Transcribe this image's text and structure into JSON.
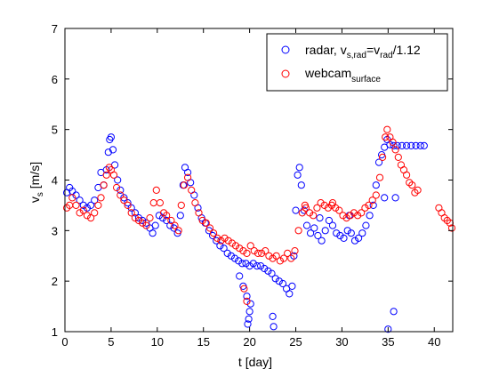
{
  "chart_data": {
    "type": "scatter",
    "xlabel": "t [day]",
    "ylabel": "v_s [m/s]",
    "xlim": [
      0,
      42
    ],
    "ylim": [
      1,
      7
    ],
    "x_ticks": [
      "0",
      "5",
      "10",
      "15",
      "20",
      "25",
      "30",
      "35",
      "40"
    ],
    "y_ticks": [
      "1",
      "2",
      "3",
      "4",
      "5",
      "6",
      "7"
    ],
    "grid": false,
    "legend_placement": "top-right",
    "series": [
      {
        "name": "radar, v_s,rad=v_rad/1.12",
        "color": "#0000ff",
        "marker": "open-circle",
        "points": [
          [
            0.2,
            3.75
          ],
          [
            0.5,
            3.85
          ],
          [
            0.8,
            3.78
          ],
          [
            1.2,
            3.7
          ],
          [
            1.6,
            3.6
          ],
          [
            2.0,
            3.5
          ],
          [
            2.4,
            3.45
          ],
          [
            2.8,
            3.5
          ],
          [
            3.2,
            3.6
          ],
          [
            3.6,
            3.85
          ],
          [
            3.9,
            4.15
          ],
          [
            4.2,
            3.9
          ],
          [
            4.5,
            4.2
          ],
          [
            4.7,
            4.55
          ],
          [
            4.85,
            4.8
          ],
          [
            5.0,
            4.85
          ],
          [
            5.2,
            4.6
          ],
          [
            5.4,
            4.3
          ],
          [
            5.7,
            4.0
          ],
          [
            6.0,
            3.8
          ],
          [
            6.4,
            3.65
          ],
          [
            6.8,
            3.55
          ],
          [
            7.2,
            3.45
          ],
          [
            7.6,
            3.35
          ],
          [
            8.0,
            3.25
          ],
          [
            8.4,
            3.2
          ],
          [
            8.8,
            3.15
          ],
          [
            9.2,
            3.05
          ],
          [
            9.5,
            2.95
          ],
          [
            9.8,
            3.1
          ],
          [
            10.2,
            3.3
          ],
          [
            10.6,
            3.25
          ],
          [
            11.0,
            3.2
          ],
          [
            11.4,
            3.1
          ],
          [
            11.8,
            3.05
          ],
          [
            12.2,
            2.95
          ],
          [
            12.5,
            3.3
          ],
          [
            12.8,
            3.9
          ],
          [
            13.0,
            4.25
          ],
          [
            13.3,
            4.15
          ],
          [
            13.6,
            3.95
          ],
          [
            14.0,
            3.7
          ],
          [
            14.4,
            3.45
          ],
          [
            14.8,
            3.25
          ],
          [
            15.2,
            3.15
          ],
          [
            15.6,
            3.0
          ],
          [
            16.0,
            2.9
          ],
          [
            16.4,
            2.8
          ],
          [
            16.8,
            2.7
          ],
          [
            17.2,
            2.65
          ],
          [
            17.6,
            2.55
          ],
          [
            18.0,
            2.5
          ],
          [
            18.4,
            2.45
          ],
          [
            18.8,
            2.4
          ],
          [
            19.2,
            2.35
          ],
          [
            19.6,
            2.35
          ],
          [
            20.0,
            2.3
          ],
          [
            20.4,
            2.35
          ],
          [
            20.8,
            2.3
          ],
          [
            21.2,
            2.3
          ],
          [
            21.6,
            2.25
          ],
          [
            22.0,
            2.2
          ],
          [
            22.4,
            2.15
          ],
          [
            22.8,
            2.05
          ],
          [
            23.2,
            2.0
          ],
          [
            23.6,
            1.95
          ],
          [
            24.0,
            1.85
          ],
          [
            24.3,
            1.75
          ],
          [
            24.6,
            1.9
          ],
          [
            24.8,
            2.5
          ],
          [
            25.0,
            3.4
          ],
          [
            25.2,
            4.1
          ],
          [
            25.4,
            4.25
          ],
          [
            25.6,
            3.9
          ],
          [
            25.9,
            3.4
          ],
          [
            26.2,
            3.1
          ],
          [
            26.6,
            2.95
          ],
          [
            27.0,
            3.05
          ],
          [
            27.4,
            2.9
          ],
          [
            27.8,
            2.8
          ],
          [
            28.2,
            3.0
          ],
          [
            28.6,
            3.2
          ],
          [
            29.0,
            3.1
          ],
          [
            29.4,
            2.95
          ],
          [
            29.8,
            2.9
          ],
          [
            30.2,
            2.85
          ],
          [
            30.6,
            3.0
          ],
          [
            31.0,
            2.95
          ],
          [
            31.4,
            2.8
          ],
          [
            31.8,
            2.85
          ],
          [
            32.2,
            2.95
          ],
          [
            32.6,
            3.1
          ],
          [
            33.0,
            3.3
          ],
          [
            33.4,
            3.5
          ],
          [
            33.7,
            3.9
          ],
          [
            34.0,
            4.35
          ],
          [
            34.3,
            4.5
          ],
          [
            34.6,
            4.65
          ],
          [
            34.9,
            4.8
          ],
          [
            35.2,
            4.7
          ],
          [
            35.6,
            4.68
          ],
          [
            36.0,
            4.68
          ],
          [
            36.5,
            4.68
          ],
          [
            37.0,
            4.68
          ],
          [
            37.5,
            4.68
          ],
          [
            38.0,
            4.68
          ],
          [
            38.5,
            4.68
          ],
          [
            38.9,
            4.68
          ],
          [
            19.8,
            1.15
          ],
          [
            19.9,
            1.25
          ],
          [
            20.0,
            1.4
          ],
          [
            20.1,
            1.55
          ],
          [
            19.7,
            1.7
          ],
          [
            19.3,
            1.9
          ],
          [
            18.9,
            2.1
          ],
          [
            22.5,
            1.3
          ],
          [
            22.6,
            1.1
          ],
          [
            35.0,
            1.05
          ],
          [
            35.6,
            1.4
          ],
          [
            35.8,
            3.65
          ],
          [
            34.6,
            3.65
          ],
          [
            27.6,
            3.25
          ],
          [
            30.8,
            3.3
          ]
        ]
      },
      {
        "name": "webcam_surface",
        "color": "#ff0000",
        "marker": "open-circle",
        "points": [
          [
            0.2,
            3.45
          ],
          [
            0.5,
            3.5
          ],
          [
            0.8,
            3.65
          ],
          [
            1.2,
            3.5
          ],
          [
            1.6,
            3.35
          ],
          [
            2.0,
            3.4
          ],
          [
            2.4,
            3.3
          ],
          [
            2.8,
            3.25
          ],
          [
            3.2,
            3.35
          ],
          [
            3.6,
            3.5
          ],
          [
            3.9,
            3.65
          ],
          [
            4.2,
            3.9
          ],
          [
            4.5,
            4.1
          ],
          [
            4.8,
            4.25
          ],
          [
            5.0,
            4.2
          ],
          [
            5.3,
            4.1
          ],
          [
            5.6,
            3.85
          ],
          [
            6.0,
            3.7
          ],
          [
            6.4,
            3.6
          ],
          [
            6.8,
            3.5
          ],
          [
            7.2,
            3.35
          ],
          [
            7.6,
            3.25
          ],
          [
            8.0,
            3.2
          ],
          [
            8.4,
            3.15
          ],
          [
            8.8,
            3.1
          ],
          [
            9.2,
            3.25
          ],
          [
            9.6,
            3.55
          ],
          [
            9.9,
            3.8
          ],
          [
            10.3,
            3.55
          ],
          [
            10.7,
            3.35
          ],
          [
            11.0,
            3.3
          ],
          [
            11.5,
            3.2
          ],
          [
            11.9,
            3.1
          ],
          [
            12.3,
            3.0
          ],
          [
            12.6,
            3.5
          ],
          [
            12.9,
            3.9
          ],
          [
            13.3,
            4.05
          ],
          [
            13.7,
            3.8
          ],
          [
            14.1,
            3.55
          ],
          [
            14.5,
            3.35
          ],
          [
            14.9,
            3.2
          ],
          [
            15.3,
            3.15
          ],
          [
            15.7,
            3.05
          ],
          [
            16.1,
            2.95
          ],
          [
            16.5,
            2.85
          ],
          [
            16.9,
            2.8
          ],
          [
            17.3,
            2.85
          ],
          [
            17.7,
            2.8
          ],
          [
            18.1,
            2.75
          ],
          [
            18.5,
            2.7
          ],
          [
            18.9,
            2.65
          ],
          [
            19.3,
            2.6
          ],
          [
            19.7,
            2.55
          ],
          [
            20.1,
            2.7
          ],
          [
            20.5,
            2.6
          ],
          [
            20.9,
            2.55
          ],
          [
            21.3,
            2.55
          ],
          [
            21.7,
            2.6
          ],
          [
            22.1,
            2.5
          ],
          [
            22.5,
            2.45
          ],
          [
            22.9,
            2.5
          ],
          [
            23.3,
            2.4
          ],
          [
            23.7,
            2.45
          ],
          [
            24.1,
            2.55
          ],
          [
            24.5,
            2.45
          ],
          [
            24.9,
            2.6
          ],
          [
            25.3,
            3.0
          ],
          [
            25.7,
            3.35
          ],
          [
            26.1,
            3.45
          ],
          [
            26.5,
            3.35
          ],
          [
            26.9,
            3.3
          ],
          [
            27.3,
            3.45
          ],
          [
            27.7,
            3.55
          ],
          [
            28.1,
            3.5
          ],
          [
            28.5,
            3.45
          ],
          [
            28.9,
            3.5
          ],
          [
            29.3,
            3.45
          ],
          [
            29.7,
            3.4
          ],
          [
            30.1,
            3.3
          ],
          [
            30.5,
            3.25
          ],
          [
            30.9,
            3.3
          ],
          [
            31.3,
            3.35
          ],
          [
            31.7,
            3.3
          ],
          [
            32.1,
            3.35
          ],
          [
            32.5,
            3.45
          ],
          [
            32.9,
            3.5
          ],
          [
            33.3,
            3.6
          ],
          [
            33.7,
            3.7
          ],
          [
            34.1,
            4.05
          ],
          [
            34.4,
            4.45
          ],
          [
            34.7,
            4.85
          ],
          [
            34.9,
            5.0
          ],
          [
            35.2,
            4.85
          ],
          [
            35.5,
            4.75
          ],
          [
            35.8,
            4.6
          ],
          [
            36.1,
            4.45
          ],
          [
            36.4,
            4.3
          ],
          [
            36.7,
            4.2
          ],
          [
            37.0,
            4.1
          ],
          [
            37.3,
            3.95
          ],
          [
            37.6,
            3.9
          ],
          [
            37.9,
            3.75
          ],
          [
            38.2,
            3.8
          ],
          [
            40.5,
            3.45
          ],
          [
            40.8,
            3.35
          ],
          [
            41.1,
            3.25
          ],
          [
            41.4,
            3.2
          ],
          [
            41.7,
            3.15
          ],
          [
            41.9,
            3.05
          ],
          [
            19.4,
            1.85
          ],
          [
            19.7,
            1.6
          ],
          [
            26.0,
            3.5
          ],
          [
            29.0,
            3.55
          ]
        ]
      }
    ]
  },
  "legend": {
    "radar": {
      "main": "radar, v",
      "sub1": "s,rad",
      "mid": "=v",
      "sub2": "rad",
      "tail": "/1.12"
    },
    "webcam": {
      "main": "webcam",
      "sub": "surface"
    }
  },
  "axes": {
    "xlabel": "t [day]",
    "ylabel_main": "v",
    "ylabel_sub": "s",
    "ylabel_tail": " [m/s]"
  }
}
